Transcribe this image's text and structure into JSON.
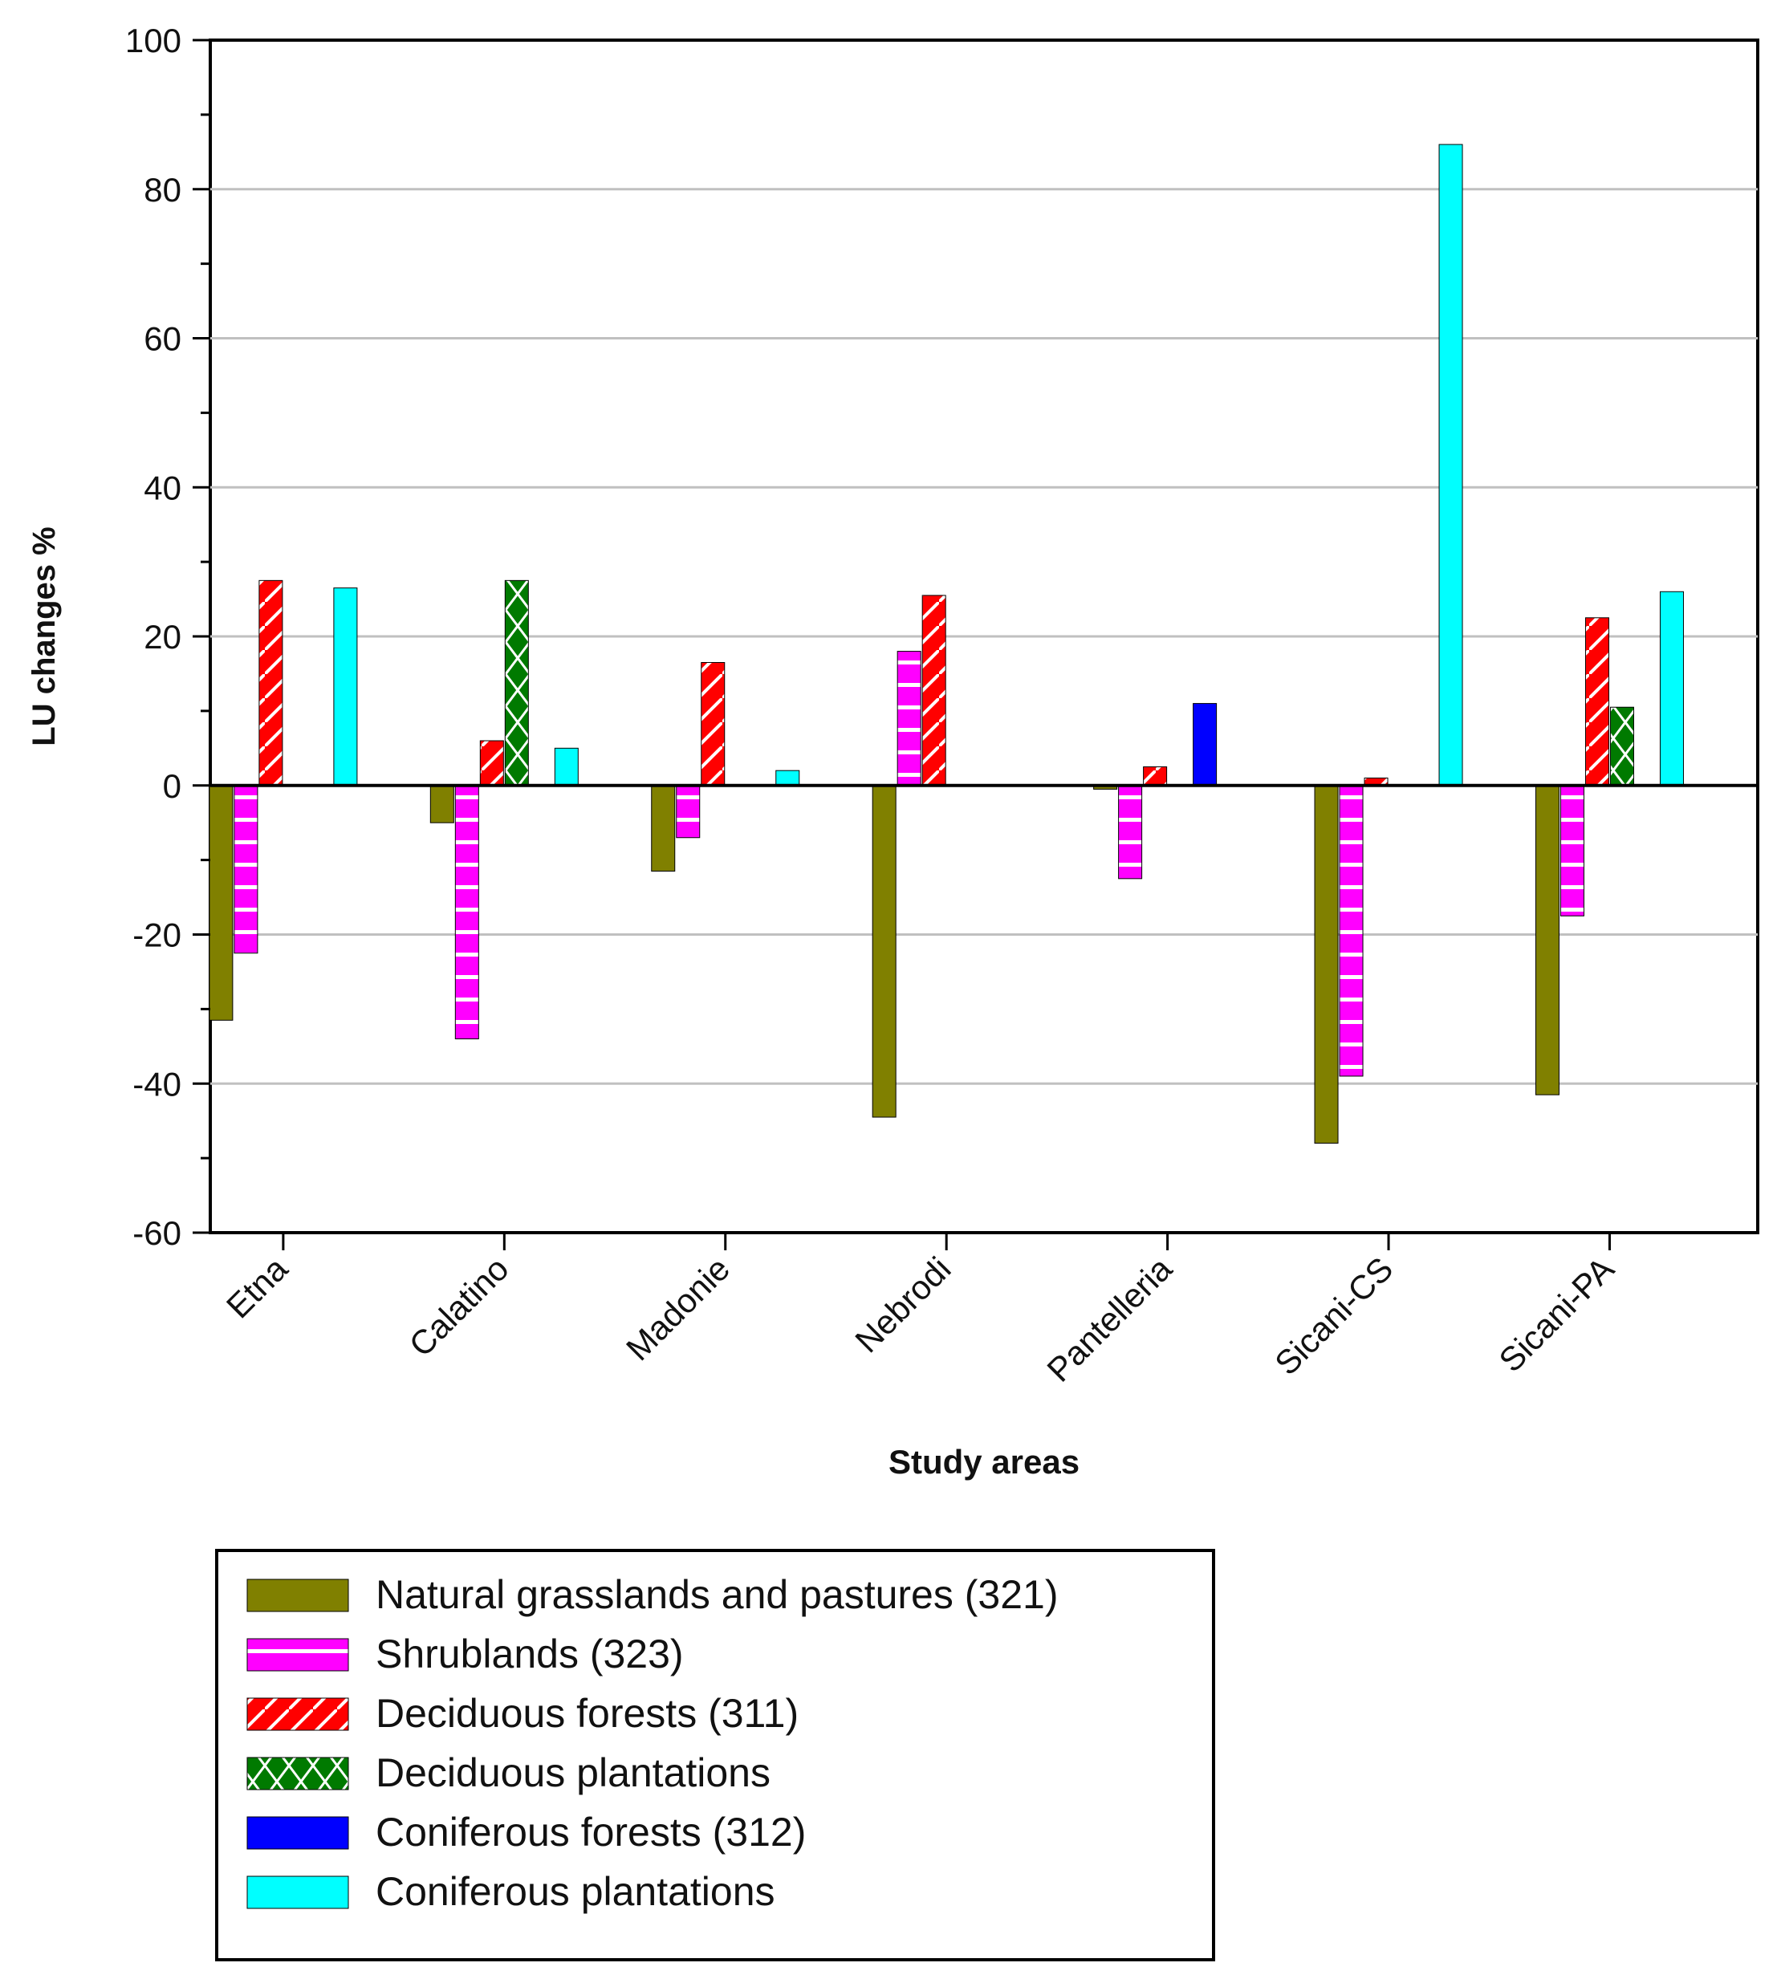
{
  "chart_data": {
    "type": "bar",
    "title": "",
    "xlabel": "Study areas",
    "ylabel": "LU changes %",
    "ylim": [
      -60,
      100
    ],
    "yticks": [
      -60,
      -40,
      -20,
      0,
      20,
      40,
      60,
      80,
      100
    ],
    "grid": true,
    "legend_position": "bottom-left",
    "categories": [
      "Etna",
      "Calatino",
      "Madonie",
      "Nebrodi",
      "Pantelleria",
      "Sicani-CS",
      "Sicani-PA"
    ],
    "series": [
      {
        "name": "Natural grasslands and pastures (321)",
        "color": "#808000",
        "pattern": "solid",
        "values": [
          -31.5,
          -5,
          -11.5,
          -44.5,
          -0.5,
          -48,
          -41.5
        ]
      },
      {
        "name": "Shrublands (323)",
        "color": "#ff00ff",
        "pattern": "horizontal-lines",
        "values": [
          -22.5,
          -34,
          -7,
          18,
          -12.5,
          -39,
          -17.5
        ]
      },
      {
        "name": "Deciduous forests (311)",
        "color": "#ff0000",
        "pattern": "diagonal-lines",
        "values": [
          27.5,
          6,
          16.5,
          25.5,
          2.5,
          1,
          22.5
        ]
      },
      {
        "name": "Deciduous plantations",
        "color": "#007a00",
        "pattern": "cross-hatch",
        "values": [
          0,
          27.5,
          0,
          0,
          0,
          0,
          10.5
        ]
      },
      {
        "name": "Coniferous forests (312)",
        "color": "#0000ff",
        "pattern": "solid",
        "values": [
          0,
          0,
          0,
          0,
          11,
          0,
          0
        ]
      },
      {
        "name": "Coniferous plantations",
        "color": "#00ffff",
        "pattern": "solid",
        "values": [
          26.5,
          5,
          2,
          0,
          0,
          86,
          26
        ]
      }
    ]
  }
}
